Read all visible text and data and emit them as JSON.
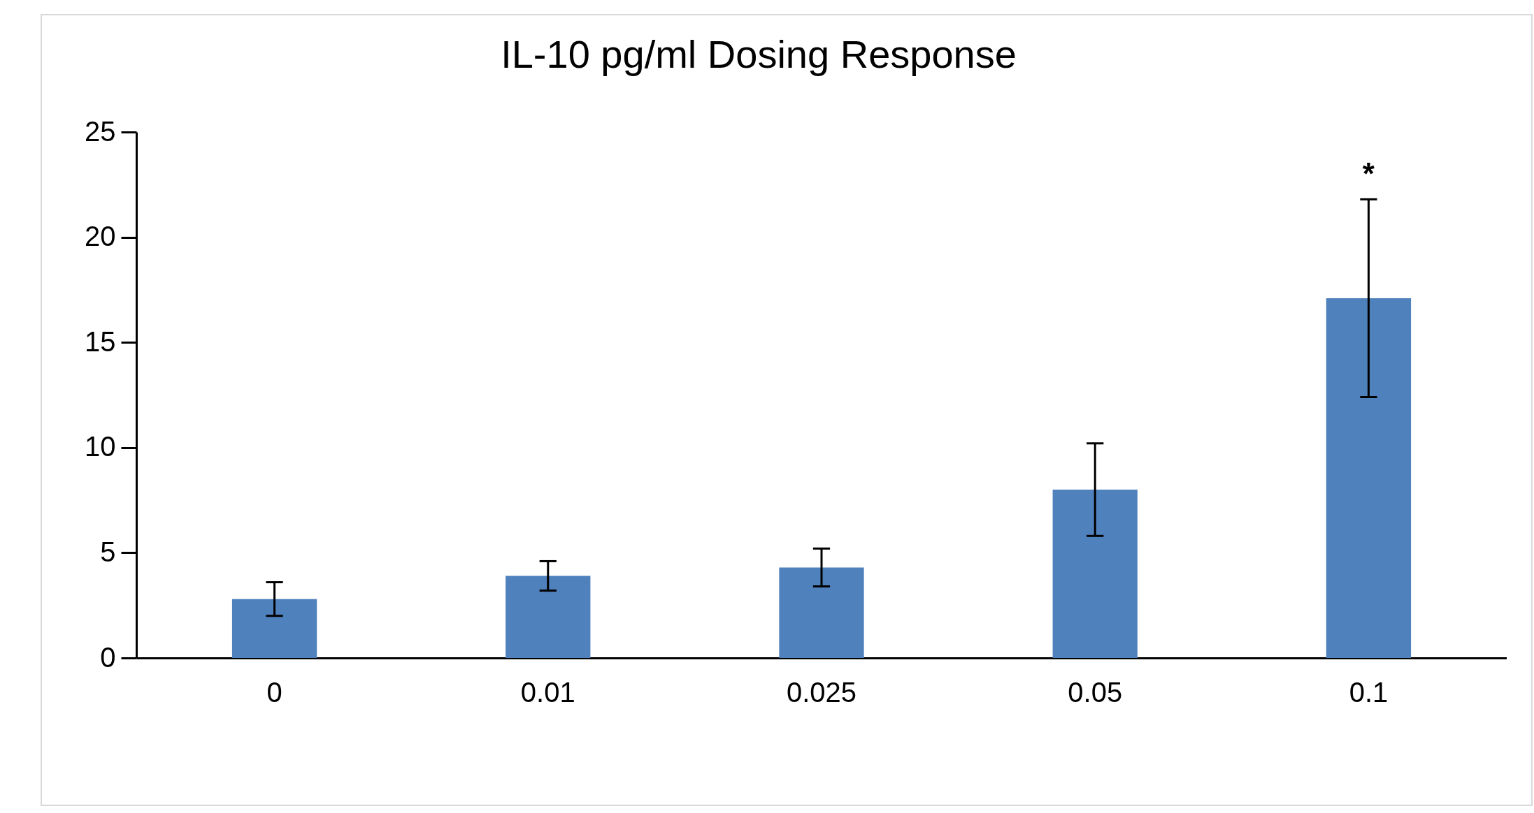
{
  "chart_data": {
    "type": "bar",
    "title": "IL-10 pg/ml Dosing Response",
    "categories": [
      "0",
      "0.01",
      "0.025",
      "0.05",
      "0.1"
    ],
    "values": [
      2.8,
      3.9,
      4.3,
      8.0,
      17.1
    ],
    "errors": [
      0.8,
      0.7,
      0.9,
      2.2,
      4.7
    ],
    "color": "#4f81bd",
    "ylim": [
      0,
      25
    ],
    "yticks": [
      0,
      5,
      10,
      15,
      20,
      25
    ],
    "annotations": [
      "*"
    ]
  }
}
